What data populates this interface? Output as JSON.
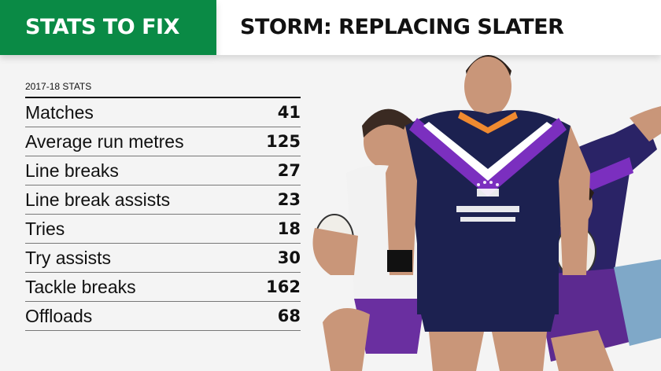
{
  "header": {
    "left_title": "STATS TO FIX",
    "right_title": "STORM: REPLACING SLATER"
  },
  "stats": {
    "subtitle": "2017-18 STATS",
    "rows": [
      {
        "label": "Matches",
        "value": "41"
      },
      {
        "label": "Average run metres",
        "value": "125"
      },
      {
        "label": "Line breaks",
        "value": "27"
      },
      {
        "label": "Line break assists",
        "value": "23"
      },
      {
        "label": "Tries",
        "value": "18"
      },
      {
        "label": "Try assists",
        "value": "30"
      },
      {
        "label": "Tackle breaks",
        "value": "162"
      },
      {
        "label": "Offloads",
        "value": "68"
      }
    ]
  },
  "colors": {
    "accent": "#0a8a45",
    "jersey_navy": "#1c2150",
    "jersey_purple": "#7b2fbf"
  }
}
